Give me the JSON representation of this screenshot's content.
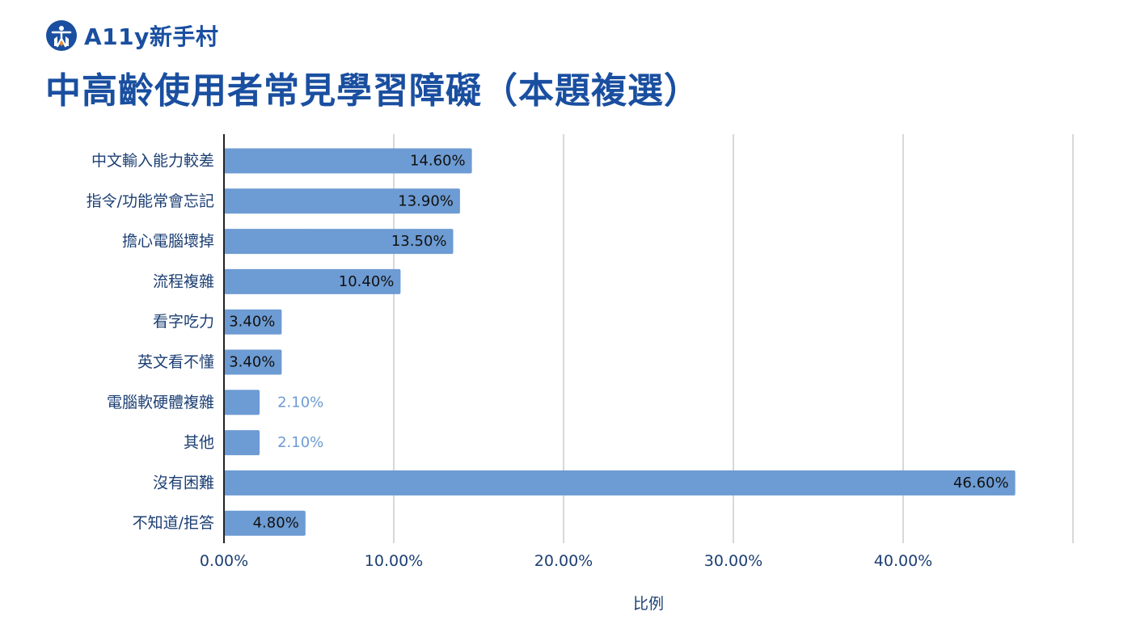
{
  "header": {
    "brand_name": "A11y新手村",
    "logo_icon": "a11y-village-logo-icon",
    "title": "中高齡使用者常見學習障礙（本題複選）"
  },
  "colors": {
    "brand": "#1a4fa0",
    "bar": "#6d9bd3",
    "grid": "#cccccc",
    "axis_text": "#1c3f73"
  },
  "chart_data": {
    "type": "bar",
    "orientation": "horizontal",
    "categories": [
      "中文輸入能力較差",
      "指令/功能常會忘記",
      "擔心電腦壞掉",
      "流程複雜",
      "看字吃力",
      "英文看不懂",
      "電腦軟硬體複雜",
      "其他",
      "沒有困難",
      "不知道/拒答"
    ],
    "values": [
      14.6,
      13.9,
      13.5,
      10.4,
      3.4,
      3.4,
      2.1,
      2.1,
      46.6,
      4.8
    ],
    "value_labels": [
      "14.60%",
      "13.90%",
      "13.50%",
      "10.40%",
      "3.40%",
      "3.40%",
      "2.10%",
      "2.10%",
      "46.60%",
      "4.80%"
    ],
    "xlabel": "比例",
    "xlim": [
      0,
      50
    ],
    "xticks": [
      0,
      10,
      20,
      30,
      40
    ],
    "xtick_labels": [
      "0.00%",
      "10.00%",
      "20.00%",
      "30.00%",
      "40.00%"
    ],
    "grid": true
  }
}
